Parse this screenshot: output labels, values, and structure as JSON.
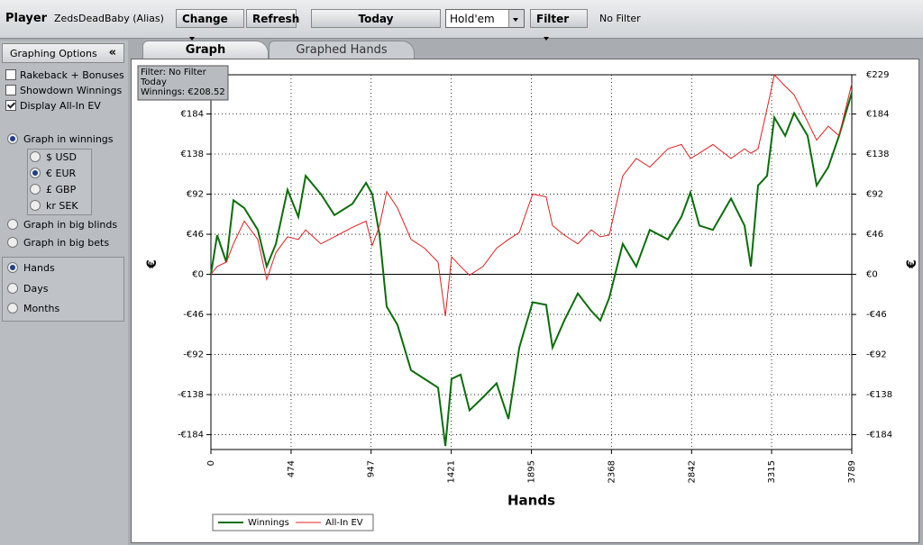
{
  "toolbar": {
    "player_label": "Player",
    "player": "ZedsDeadBaby (Alias)",
    "change": "Change",
    "refresh": "Refresh",
    "today": "Today",
    "game": "Hold'em",
    "filter": "Filter",
    "filter_status": "No Filter"
  },
  "sidebar": {
    "title": "Graphing Options",
    "collapse": "«",
    "options": [
      {
        "label": "Rakeback + Bonuses",
        "checked": false
      },
      {
        "label": "Showdown Winnings",
        "checked": false
      },
      {
        "label": "Display All-In EV",
        "checked": true
      }
    ],
    "graph_modes": [
      {
        "label": "Graph in winnings",
        "selected": true
      },
      {
        "label": "Graph in big blinds",
        "selected": false
      },
      {
        "label": "Graph in big bets",
        "selected": false
      }
    ],
    "currencies": [
      {
        "label": "$ USD",
        "selected": false
      },
      {
        "label": "€ EUR",
        "selected": true
      },
      {
        "label": "£ GBP",
        "selected": false
      },
      {
        "label": "kr SEK",
        "selected": false
      }
    ],
    "x_modes": [
      {
        "label": "Hands",
        "selected": true
      },
      {
        "label": "Days",
        "selected": false
      },
      {
        "label": "Months",
        "selected": false
      }
    ]
  },
  "tabs": [
    {
      "label": "Graph",
      "active": true
    },
    {
      "label": "Graphed Hands",
      "active": false
    }
  ],
  "chart_data": {
    "type": "line",
    "xlabel": "Hands",
    "ylabel": "€",
    "y2label": "€",
    "annotation": [
      "Filter: No Filter",
      "Today",
      "Winnings: €208.52"
    ],
    "xlim": [
      0,
      3789
    ],
    "ylim": [
      -201,
      229
    ],
    "y2lim": [
      -201,
      229
    ],
    "grid": true,
    "xticks": [
      0,
      474,
      947,
      1421,
      1895,
      2368,
      2842,
      3315,
      3789
    ],
    "yticks": [
      {
        "value": 184,
        "label": "€184"
      },
      {
        "value": 138,
        "label": "€138"
      },
      {
        "value": 92,
        "label": "€92"
      },
      {
        "value": 46,
        "label": "€46"
      },
      {
        "value": 0,
        "label": "€0"
      },
      {
        "value": -46,
        "label": "-€46"
      },
      {
        "value": -92,
        "label": "-€92"
      },
      {
        "value": -138,
        "label": "-€138"
      },
      {
        "value": -184,
        "label": "-€184"
      }
    ],
    "y2ticks": [
      {
        "value": 229,
        "label": "€229"
      },
      {
        "value": 184,
        "label": "€184"
      },
      {
        "value": 138,
        "label": "€138"
      },
      {
        "value": 92,
        "label": "€92"
      },
      {
        "value": 46,
        "label": "€46"
      },
      {
        "value": 0,
        "label": "€0"
      },
      {
        "value": -46,
        "label": "-€46"
      },
      {
        "value": -92,
        "label": "-€92"
      },
      {
        "value": -138,
        "label": "-€138"
      },
      {
        "value": -184,
        "label": "-€184"
      }
    ],
    "x": [
      0,
      37,
      91,
      133,
      197,
      277,
      330,
      384,
      453,
      517,
      560,
      650,
      730,
      837,
      917,
      954,
      997,
      1039,
      1103,
      1183,
      1263,
      1343,
      1386,
      1423,
      1476,
      1529,
      1609,
      1689,
      1759,
      1823,
      1902,
      1982,
      2020,
      2089,
      2169,
      2249,
      2302,
      2355,
      2435,
      2515,
      2595,
      2702,
      2782,
      2835,
      2888,
      2968,
      3075,
      3155,
      3192,
      3235,
      3288,
      3331,
      3395,
      3448,
      3528,
      3581,
      3650,
      3714,
      3789
    ],
    "series": [
      {
        "name": "Winnings",
        "color": "#0b6e0b",
        "values": [
          0,
          45,
          14,
          85,
          76,
          51,
          9,
          35,
          97,
          66,
          113,
          92,
          68,
          81,
          105,
          92,
          45,
          -37,
          -58,
          -110,
          -120,
          -130,
          -197,
          -120,
          -115,
          -156,
          -141,
          -125,
          -166,
          -84,
          -32,
          -35,
          -84,
          -53,
          -22,
          -42,
          -53,
          -27,
          35,
          9,
          51,
          40,
          66,
          94,
          56,
          51,
          87,
          56,
          9,
          102,
          113,
          180,
          159,
          185,
          159,
          102,
          123,
          159,
          208.52
        ]
      },
      {
        "name": "All-In EV",
        "color": "#e02020",
        "values": [
          0,
          9,
          14,
          35,
          61,
          40,
          -6,
          25,
          43,
          40,
          51,
          35,
          43,
          54,
          61,
          33,
          56,
          95,
          76,
          40,
          30,
          14,
          -48,
          20,
          9,
          -1,
          9,
          30,
          40,
          48,
          92,
          89,
          56,
          45,
          35,
          51,
          43,
          45,
          113,
          133,
          123,
          144,
          149,
          133,
          139,
          149,
          133,
          144,
          139,
          144,
          190,
          229,
          216,
          206,
          175,
          154,
          170,
          159,
          219
        ]
      }
    ]
  }
}
